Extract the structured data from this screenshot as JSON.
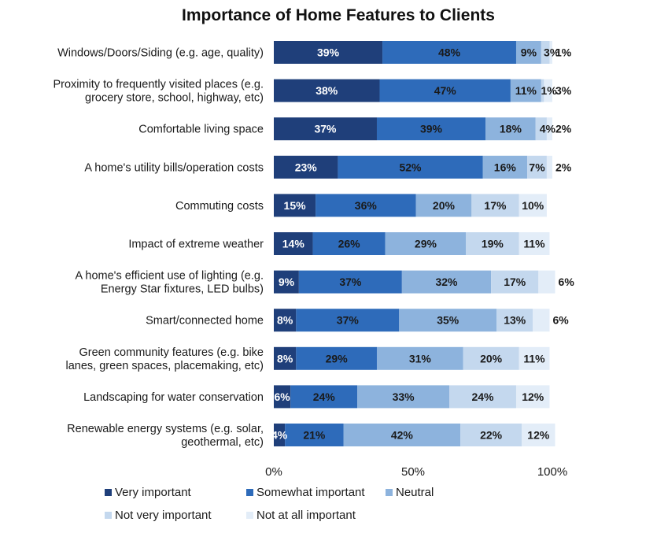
{
  "chart_data": {
    "type": "bar",
    "orientation": "horizontal",
    "stacked": true,
    "title": "Importance of Home Features to Clients",
    "xlabel": "",
    "ylabel": "",
    "xlim": [
      0,
      100
    ],
    "x_ticks": [
      "0%",
      "50%",
      "100%"
    ],
    "grid": false,
    "legend_position": "bottom-left",
    "categories": [
      [
        "Windows/Doors/Siding (e.g. age, quality)"
      ],
      [
        "Proximity to frequently visited places (e.g.",
        "grocery store, school, highway, etc)"
      ],
      [
        "Comfortable living space"
      ],
      [
        "A home's utility bills/operation costs"
      ],
      [
        "Commuting costs"
      ],
      [
        "Impact of extreme weather"
      ],
      [
        "A home's efficient use of lighting (e.g.",
        "Energy Star fixtures, LED bulbs)"
      ],
      [
        "Smart/connected home"
      ],
      [
        "Green community features (e.g. bike",
        "lanes, green spaces, placemaking, etc)"
      ],
      [
        "Landscaping for water conservation"
      ],
      [
        "Renewable energy systems (e.g. solar,",
        "geothermal, etc)"
      ]
    ],
    "series": [
      {
        "name": "Very important",
        "color": "#1f3f7a",
        "label_color": "#ffffff",
        "values": [
          39,
          38,
          37,
          23,
          15,
          14,
          9,
          8,
          8,
          6,
          4
        ]
      },
      {
        "name": "Somewhat important",
        "color": "#2e6bba",
        "label_color": "#1a1a1a",
        "values": [
          48,
          47,
          39,
          52,
          36,
          26,
          37,
          37,
          29,
          24,
          21
        ]
      },
      {
        "name": "Neutral",
        "color": "#8db3dd",
        "label_color": "#1a1a1a",
        "values": [
          9,
          11,
          18,
          16,
          20,
          29,
          32,
          35,
          31,
          33,
          42
        ]
      },
      {
        "name": "Not very important",
        "color": "#c4d8ee",
        "label_color": "#1a1a1a",
        "values": [
          3,
          1,
          4,
          7,
          17,
          19,
          17,
          13,
          20,
          24,
          22
        ]
      },
      {
        "name": "Not at all important",
        "color": "#e3edf8",
        "label_color": "#1a1a1a",
        "values": [
          1,
          3,
          2,
          2,
          10,
          11,
          6,
          6,
          11,
          12,
          12
        ]
      }
    ],
    "value_labels": [
      [
        "39%",
        "48%",
        "9%",
        "3%",
        "1%"
      ],
      [
        "38%",
        "47%",
        "11%",
        "1%",
        "3%"
      ],
      [
        "37%",
        "39%",
        "18%",
        "4%",
        "2%"
      ],
      [
        "23%",
        "52%",
        "16%",
        "7%",
        "2%"
      ],
      [
        "15%",
        "36%",
        "20%",
        "17%",
        "10%"
      ],
      [
        "14%",
        "26%",
        "29%",
        "19%",
        "11%"
      ],
      [
        "9%",
        "37%",
        "32%",
        "17%",
        "6%"
      ],
      [
        "8%",
        "37%",
        "35%",
        "13%",
        "6%"
      ],
      [
        "8%",
        "29%",
        "31%",
        "20%",
        "11%"
      ],
      [
        "6%",
        "24%",
        "33%",
        "24%",
        "12%"
      ],
      [
        "4%",
        "21%",
        "42%",
        "22%",
        "12%"
      ]
    ]
  }
}
